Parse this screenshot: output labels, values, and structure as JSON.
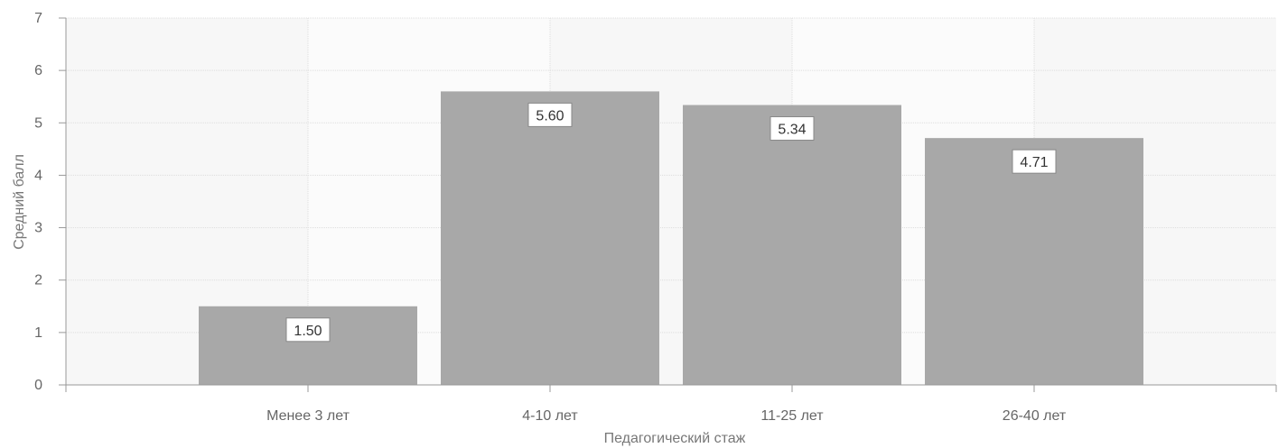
{
  "chart_data": {
    "type": "bar",
    "categories": [
      "Менее 3 лет",
      "4-10 лет",
      "11-25 лет",
      "26-40 лет"
    ],
    "x_ticks": [
      "",
      "Менее 3 лет",
      "4-10 лет",
      "11-25 лет",
      "26-40 лет",
      ""
    ],
    "values": [
      1.5,
      5.6,
      5.34,
      4.71
    ],
    "value_labels": [
      "1.50",
      "5.60",
      "5.34",
      "4.71"
    ],
    "xlabel": "Педагогический стаж",
    "ylabel": "Средний балл",
    "ylim": [
      0,
      7
    ],
    "y_ticks": [
      0,
      1,
      2,
      3,
      4,
      5,
      6,
      7
    ],
    "grid": true,
    "colors": {
      "bar": "#a8a8a8",
      "band_a": "#f7f7f7",
      "band_b": "#fbfbfb",
      "grid": "#dddddd",
      "axis": "#999999"
    }
  }
}
